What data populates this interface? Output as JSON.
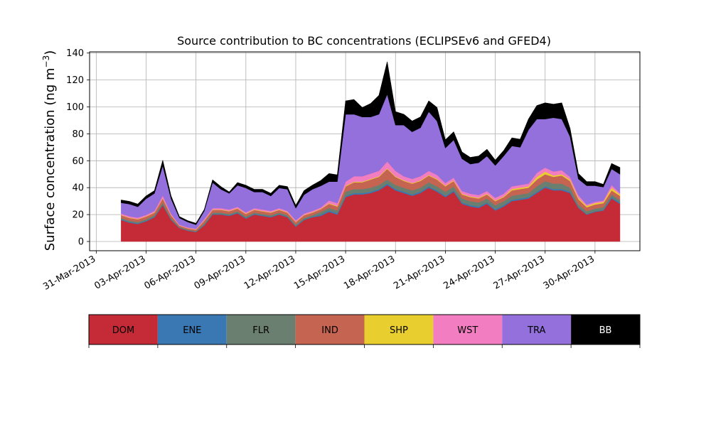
{
  "chart_data": {
    "type": "area",
    "stacked": true,
    "title": "Source contribution to BC concentrations (ECLIPSEv6 and GFED4)",
    "ylabel": "Surface concentration (ng m",
    "ylabel_exp": "−3",
    "ylabel_end": ")",
    "xlabel": "",
    "ylim": [
      0,
      142
    ],
    "yticks": [
      0,
      20,
      40,
      60,
      80,
      100,
      120,
      140
    ],
    "xlim": [
      "2013-03-30T14:24",
      "2013-05-02T16:48"
    ],
    "xtick_labels": [
      "31-Mar-2013",
      "03-Apr-2013",
      "06-Apr-2013",
      "09-Apr-2013",
      "12-Apr-2013",
      "15-Apr-2013",
      "18-Apr-2013",
      "21-Apr-2013",
      "24-Apr-2013",
      "27-Apr-2013",
      "30-Apr-2013"
    ],
    "xtick_dates": [
      "2013-03-31",
      "2013-04-03",
      "2013-04-06",
      "2013-04-09",
      "2013-04-12",
      "2013-04-15",
      "2013-04-18",
      "2013-04-21",
      "2013-04-24",
      "2013-04-27",
      "2013-04-30"
    ],
    "grid": true,
    "legend_position": "bottom",
    "x": [
      "2013-04-01T12:00",
      "2013-04-02T00:00",
      "2013-04-02T12:00",
      "2013-04-03T00:00",
      "2013-04-03T12:00",
      "2013-04-04T00:00",
      "2013-04-04T12:00",
      "2013-04-05T00:00",
      "2013-04-05T12:00",
      "2013-04-06T00:00",
      "2013-04-06T12:00",
      "2013-04-07T00:00",
      "2013-04-07T12:00",
      "2013-04-08T00:00",
      "2013-04-08T12:00",
      "2013-04-09T00:00",
      "2013-04-09T12:00",
      "2013-04-10T00:00",
      "2013-04-10T12:00",
      "2013-04-11T00:00",
      "2013-04-11T12:00",
      "2013-04-12T00:00",
      "2013-04-12T12:00",
      "2013-04-13T00:00",
      "2013-04-13T12:00",
      "2013-04-14T00:00",
      "2013-04-14T12:00",
      "2013-04-15T00:00",
      "2013-04-15T12:00",
      "2013-04-16T00:00",
      "2013-04-16T12:00",
      "2013-04-17T00:00",
      "2013-04-17T12:00",
      "2013-04-18T00:00",
      "2013-04-18T12:00",
      "2013-04-19T00:00",
      "2013-04-19T12:00",
      "2013-04-20T00:00",
      "2013-04-20T12:00",
      "2013-04-21T00:00",
      "2013-04-21T12:00",
      "2013-04-22T00:00",
      "2013-04-22T12:00",
      "2013-04-23T00:00",
      "2013-04-23T12:00",
      "2013-04-24T00:00",
      "2013-04-24T12:00",
      "2013-04-25T00:00",
      "2013-04-25T12:00",
      "2013-04-26T00:00",
      "2013-04-26T12:00",
      "2013-04-27T00:00",
      "2013-04-27T12:00",
      "2013-04-28T00:00",
      "2013-04-28T12:00",
      "2013-04-29T00:00",
      "2013-04-29T12:00",
      "2013-04-30T00:00",
      "2013-04-30T12:00",
      "2013-05-01T00:00",
      "2013-05-01T12:00"
    ],
    "series": [
      {
        "name": "DOM",
        "color": "#C52A37",
        "values": [
          16,
          14,
          13,
          15,
          18,
          27,
          16,
          10,
          8,
          7,
          12,
          20,
          20,
          19,
          21,
          17,
          20,
          19,
          18,
          20,
          18,
          11,
          16,
          18,
          19,
          22,
          20,
          33,
          35,
          35,
          36,
          38,
          42,
          38,
          36,
          34,
          36,
          40,
          37,
          33,
          37,
          28,
          26,
          25,
          28,
          23,
          26,
          30,
          31,
          32,
          36,
          40,
          38,
          38,
          36,
          25,
          20,
          22,
          23,
          32,
          28
        ]
      },
      {
        "name": "ENE",
        "color": "#3978B2",
        "values": [
          0.5,
          0.5,
          0.5,
          0.5,
          0.5,
          0.5,
          0.5,
          0.3,
          0.3,
          0.3,
          0.5,
          0.5,
          0.5,
          0.5,
          0.5,
          0.5,
          0.5,
          0.5,
          0.5,
          0.5,
          0.5,
          0.5,
          0.5,
          0.5,
          1,
          1,
          1,
          1,
          1,
          1,
          1,
          1,
          1,
          1,
          1,
          1,
          1,
          1,
          1,
          1,
          1,
          1,
          1,
          1,
          1,
          1,
          1,
          1,
          1,
          1,
          1,
          1,
          1,
          1,
          1,
          0.5,
          0.5,
          0.5,
          0.5,
          1,
          1
        ]
      },
      {
        "name": "FLR",
        "color": "#6B7F70",
        "values": [
          1,
          1,
          1,
          1,
          1,
          1.5,
          1,
          0.5,
          0.5,
          0.5,
          1,
          1,
          1,
          1,
          1,
          1,
          1,
          1,
          1,
          1,
          1,
          1,
          1,
          1,
          2,
          2,
          2,
          3,
          3,
          3,
          3,
          3,
          3,
          3,
          3,
          3,
          3,
          3,
          3,
          3,
          3,
          3,
          3,
          3,
          3,
          3,
          3,
          3,
          3,
          3,
          4,
          4,
          4,
          4,
          3,
          2,
          2,
          2,
          2,
          2,
          2
        ]
      },
      {
        "name": "IND",
        "color": "#C66452",
        "values": [
          2,
          2,
          2,
          2,
          2,
          3,
          2,
          1,
          1,
          1,
          2,
          2,
          2,
          2,
          2,
          2,
          2,
          2,
          2,
          2,
          2,
          2,
          2,
          2,
          2,
          3,
          3,
          4,
          5,
          5,
          6,
          6,
          8,
          6,
          5,
          5,
          5,
          5,
          5,
          4,
          4,
          3,
          3,
          3,
          3,
          3,
          3,
          4,
          4,
          4,
          5,
          5,
          5,
          6,
          5,
          4,
          3,
          3,
          3,
          3,
          3
        ]
      },
      {
        "name": "SHP",
        "color": "#E8CF2F",
        "values": [
          0.3,
          0.3,
          0.3,
          0.3,
          0.3,
          0.3,
          0.3,
          0.2,
          0.2,
          0.2,
          0.3,
          0.3,
          0.3,
          0.3,
          0.3,
          0.3,
          0.3,
          0.3,
          0.3,
          0.3,
          0.3,
          0.3,
          0.3,
          0.3,
          0.3,
          0.5,
          0.5,
          0.5,
          0.5,
          0.5,
          0.5,
          0.5,
          0.5,
          0.5,
          0.5,
          0.5,
          0.5,
          0.5,
          0.5,
          0.5,
          0.5,
          0.5,
          0.5,
          0.5,
          0.5,
          0.5,
          0.5,
          1,
          1,
          1,
          2,
          2,
          1,
          1,
          1,
          1,
          1,
          1,
          1,
          2,
          1
        ]
      },
      {
        "name": "WST",
        "color": "#F27DC0",
        "values": [
          1,
          1,
          1,
          1,
          1,
          2,
          1,
          0.5,
          0.5,
          0.5,
          1,
          1,
          1,
          1,
          1,
          1,
          1,
          1,
          1,
          1,
          1,
          1,
          1,
          1,
          1,
          2,
          2,
          3,
          4,
          4,
          4,
          4,
          5,
          4,
          3,
          3,
          3,
          3,
          3,
          2,
          2,
          2,
          2,
          2,
          2,
          2,
          2,
          2,
          2,
          2,
          3,
          3,
          3,
          3,
          2,
          2,
          1,
          1,
          1,
          2,
          1
        ]
      },
      {
        "name": "TRA",
        "color": "#9370DB",
        "values": [
          8,
          9,
          8,
          12,
          13,
          22,
          11,
          5,
          4,
          3,
          6,
          19,
          14,
          12,
          16,
          18,
          12,
          13,
          11,
          15,
          16,
          9,
          14,
          16,
          16,
          14,
          16,
          50,
          46,
          44,
          42,
          42,
          50,
          34,
          38,
          35,
          36,
          44,
          40,
          26,
          28,
          24,
          22,
          24,
          26,
          24,
          28,
          30,
          28,
          40,
          40,
          36,
          40,
          38,
          30,
          12,
          14,
          12,
          10,
          12,
          14
        ]
      },
      {
        "name": "BB",
        "color": "#000000",
        "values": [
          2,
          2,
          2,
          2,
          2,
          4,
          2,
          1,
          1,
          1,
          1,
          2,
          2,
          1,
          2,
          2,
          2,
          2,
          2,
          2,
          2,
          2,
          3,
          3,
          4,
          6,
          5,
          10,
          11,
          7,
          10,
          14,
          24,
          10,
          8,
          8,
          8,
          8,
          10,
          6,
          6,
          5,
          5,
          5,
          5,
          4,
          4,
          6,
          6,
          8,
          10,
          12,
          10,
          12,
          6,
          4,
          3,
          3,
          2,
          4,
          5
        ]
      }
    ]
  }
}
